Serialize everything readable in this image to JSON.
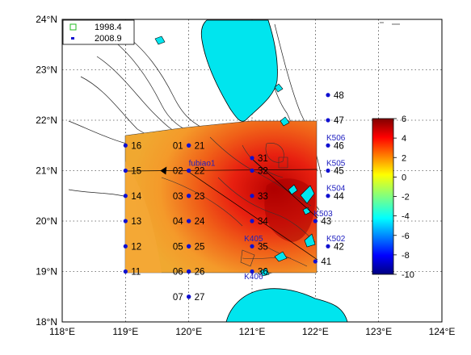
{
  "map": {
    "lon_ticks": [
      "118°E",
      "119°E",
      "120°E",
      "121°E",
      "122°E",
      "123°E",
      "124°E"
    ],
    "lat_ticks": [
      "18°N",
      "19°N",
      "20°N",
      "21°N",
      "22°N",
      "23°N",
      "24°N"
    ],
    "lon_range": [
      118,
      124
    ],
    "lat_range": [
      18,
      24
    ],
    "grid": true
  },
  "legend": {
    "items": [
      {
        "label": "1998.4",
        "marker": "open-square",
        "color": "#22bb22"
      },
      {
        "label": "2008.9",
        "marker": "dot",
        "color": "#1010d0"
      }
    ]
  },
  "colorbar": {
    "ticks": [
      "6",
      "4",
      "2",
      "0",
      "-2",
      "-4",
      "-6",
      "-8",
      "-10"
    ],
    "range": [
      -10,
      6
    ],
    "colormap": "jet"
  },
  "stations": [
    {
      "label": "16",
      "lon": 119.0,
      "lat": 21.5,
      "side": "right"
    },
    {
      "label": "15",
      "lon": 119.0,
      "lat": 21.0,
      "side": "right"
    },
    {
      "label": "14",
      "lon": 119.0,
      "lat": 20.5,
      "side": "right"
    },
    {
      "label": "13",
      "lon": 119.0,
      "lat": 20.0,
      "side": "right"
    },
    {
      "label": "12",
      "lon": 119.0,
      "lat": 19.5,
      "side": "right"
    },
    {
      "label": "11",
      "lon": 119.0,
      "lat": 19.0,
      "side": "right"
    },
    {
      "label": "01",
      "lon": 120.0,
      "lat": 21.5,
      "side": "left"
    },
    {
      "label": "02",
      "lon": 120.0,
      "lat": 21.0,
      "side": "left"
    },
    {
      "label": "03",
      "lon": 120.0,
      "lat": 20.5,
      "side": "left"
    },
    {
      "label": "04",
      "lon": 120.0,
      "lat": 20.0,
      "side": "left"
    },
    {
      "label": "05",
      "lon": 120.0,
      "lat": 19.5,
      "side": "left"
    },
    {
      "label": "06",
      "lon": 120.0,
      "lat": 19.0,
      "side": "left"
    },
    {
      "label": "07",
      "lon": 120.0,
      "lat": 18.5,
      "side": "left"
    },
    {
      "label": "21",
      "lon": 120.0,
      "lat": 21.5,
      "side": "right"
    },
    {
      "label": "22",
      "lon": 120.0,
      "lat": 21.0,
      "side": "right"
    },
    {
      "label": "23",
      "lon": 120.0,
      "lat": 20.5,
      "side": "right"
    },
    {
      "label": "24",
      "lon": 120.0,
      "lat": 20.0,
      "side": "right"
    },
    {
      "label": "25",
      "lon": 120.0,
      "lat": 19.5,
      "side": "right"
    },
    {
      "label": "26",
      "lon": 120.0,
      "lat": 19.0,
      "side": "right"
    },
    {
      "label": "27",
      "lon": 120.0,
      "lat": 18.5,
      "side": "right"
    },
    {
      "label": "31",
      "lon": 121.0,
      "lat": 21.25,
      "side": "right"
    },
    {
      "label": "32",
      "lon": 121.0,
      "lat": 21.0,
      "side": "right"
    },
    {
      "label": "33",
      "lon": 121.0,
      "lat": 20.5,
      "side": "right"
    },
    {
      "label": "34",
      "lon": 121.0,
      "lat": 20.0,
      "side": "right"
    },
    {
      "label": "35",
      "lon": 121.0,
      "lat": 19.5,
      "side": "right"
    },
    {
      "label": "36",
      "lon": 121.0,
      "lat": 19.0,
      "side": "right"
    },
    {
      "label": "41",
      "lon": 122.0,
      "lat": 19.2,
      "side": "right"
    },
    {
      "label": "42",
      "lon": 122.2,
      "lat": 19.5,
      "side": "right"
    },
    {
      "label": "43",
      "lon": 122.0,
      "lat": 20.0,
      "side": "right"
    },
    {
      "label": "44",
      "lon": 122.2,
      "lat": 20.5,
      "side": "right"
    },
    {
      "label": "45",
      "lon": 122.2,
      "lat": 21.0,
      "side": "right"
    },
    {
      "label": "46",
      "lon": 122.2,
      "lat": 21.5,
      "side": "right"
    },
    {
      "label": "47",
      "lon": 122.2,
      "lat": 22.0,
      "side": "right"
    },
    {
      "label": "48",
      "lon": 122.2,
      "lat": 22.5,
      "side": "right"
    }
  ],
  "k_labels": [
    {
      "label": "K506",
      "lon": 122.2,
      "lat": 21.6
    },
    {
      "label": "K505",
      "lon": 122.2,
      "lat": 21.1
    },
    {
      "label": "K504",
      "lon": 122.2,
      "lat": 20.6
    },
    {
      "label": "K503",
      "lon": 122.0,
      "lat": 20.1
    },
    {
      "label": "K502",
      "lon": 122.2,
      "lat": 19.6
    },
    {
      "label": "K405",
      "lon": 120.9,
      "lat": 19.6
    },
    {
      "label": "K406",
      "lon": 120.9,
      "lat": 18.85
    }
  ],
  "buoy": {
    "label": "fubiao1",
    "lon": 119.6,
    "lat": 21.0
  }
}
